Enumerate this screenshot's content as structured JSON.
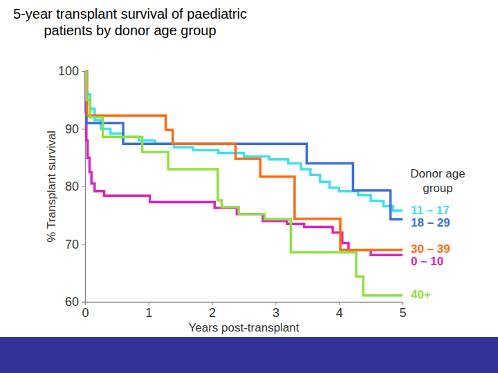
{
  "chart_data": {
    "type": "line",
    "title": "5-year transplant survival of paediatric\npatients by donor age group",
    "x_label": "Years post-transplant",
    "y_label": "% Transplant survival",
    "legend_title": "Donor age group",
    "legend": "right",
    "line_style": "step",
    "grid": false,
    "xlim": [
      0,
      5
    ],
    "xticks": [
      0,
      1,
      2,
      3,
      4,
      5
    ],
    "ylim": [
      60,
      100
    ],
    "yticks": [
      60,
      70,
      80,
      90,
      100
    ],
    "series": [
      {
        "name": "0 – 10",
        "color": "#e020c0",
        "x": [
          0,
          0.01,
          0.02,
          0.04,
          0.07,
          0.1,
          0.15,
          0.3,
          1.02,
          2.04,
          2.39,
          2.8,
          3.18,
          3.45,
          3.9,
          4.05,
          4.15,
          4.5,
          5
        ],
        "values": [
          100,
          93,
          88,
          85,
          82.5,
          80.5,
          79.2,
          78.4,
          77.3,
          76.3,
          75.2,
          74.0,
          73.5,
          73.0,
          72.0,
          70.2,
          69.0,
          68.1,
          68.1
        ]
      },
      {
        "name": "11 – 17",
        "color": "#3fe0f0",
        "x": [
          0,
          0.03,
          0.08,
          0.15,
          0.25,
          0.4,
          0.6,
          0.85,
          1.1,
          1.4,
          1.7,
          2.1,
          2.5,
          2.9,
          3.2,
          3.4,
          3.55,
          3.7,
          3.85,
          4.0,
          4.3,
          4.5,
          4.7,
          4.85,
          5
        ],
        "values": [
          100,
          96,
          93.5,
          91.5,
          90,
          89.2,
          88.6,
          88,
          87.4,
          86.8,
          86.3,
          85.8,
          85.2,
          84.7,
          84,
          83,
          82,
          80.8,
          79.8,
          79.2,
          78.5,
          77.5,
          76.6,
          75.8,
          75.8
        ]
      },
      {
        "name": "18 – 29",
        "color": "#3a6ee0",
        "x": [
          0,
          0.02,
          0.6,
          3.49,
          4.22,
          4.81,
          5
        ],
        "values": [
          100,
          91,
          87.4,
          84,
          79.3,
          74.3,
          74.3
        ]
      },
      {
        "name": "30 – 39",
        "color": "#ff6a10",
        "x": [
          0,
          0.03,
          1.27,
          1.38,
          2.37,
          2.76,
          3.3,
          4.02,
          5
        ],
        "values": [
          100,
          92.3,
          89.8,
          87.4,
          84.8,
          81.7,
          74.4,
          69.0,
          69.0
        ]
      },
      {
        "name": "40+",
        "color": "#8ee040",
        "x": [
          0,
          0.02,
          0.08,
          0.28,
          0.9,
          1.31,
          2.09,
          2.15,
          2.42,
          2.83,
          3.24,
          4.27,
          4.38,
          5
        ],
        "values": [
          100,
          95,
          92,
          88.6,
          86,
          83,
          77.6,
          76.4,
          75.2,
          74.3,
          68.6,
          64.4,
          61.1,
          61.1
        ]
      }
    ]
  }
}
